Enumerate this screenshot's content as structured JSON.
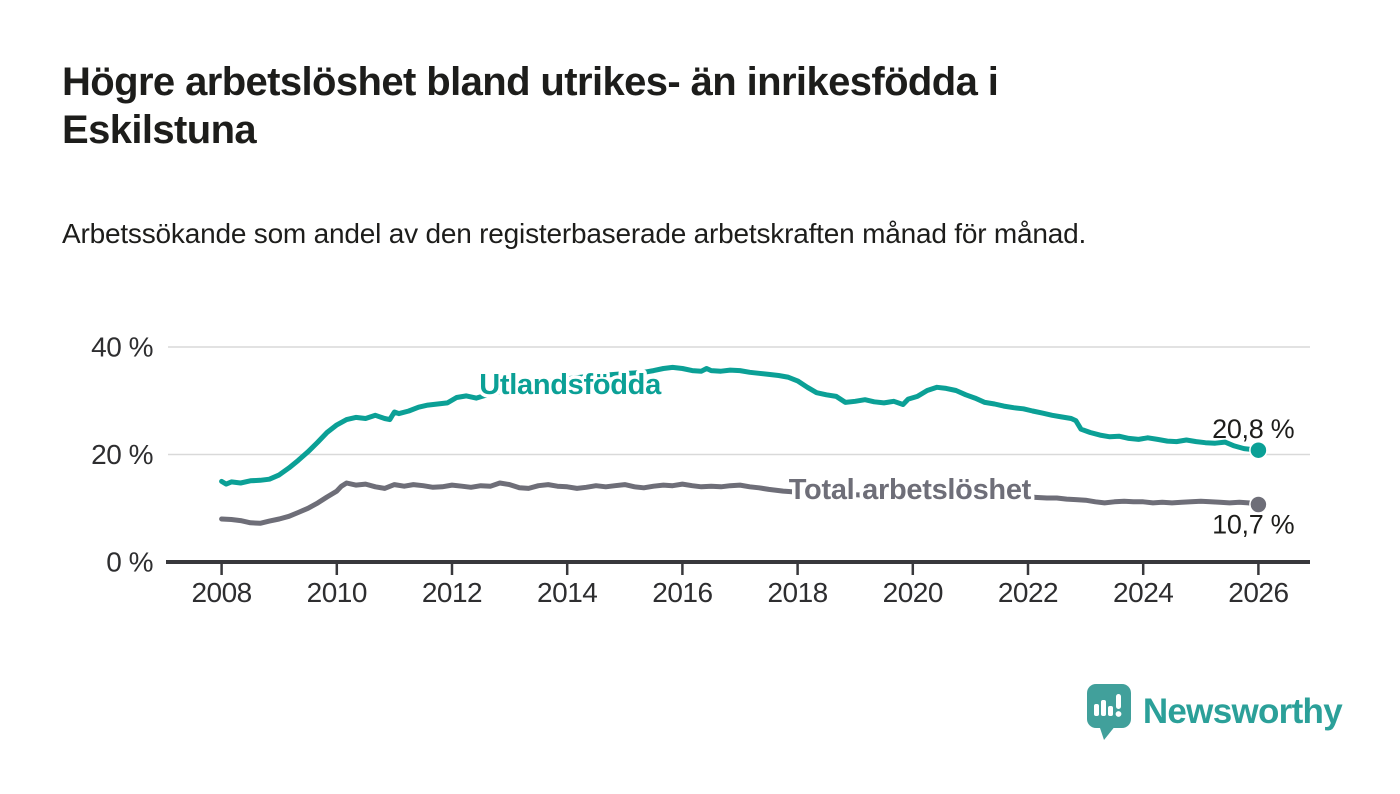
{
  "title": "Högre arbetslöshet bland utrikes- än inrikesfödda i Eskilstuna",
  "subtitle": "Arbetssökande som andel av den registerbaserade arbetskraften månad för månad.",
  "branding": {
    "name": "Newsworthy",
    "logo_icon": "speech-bubble-bar-chart-icon",
    "icon_color": "#41a09b",
    "wordmark_color": "#2ba099"
  },
  "chart_data": {
    "type": "line",
    "title": "Högre arbetslöshet bland utrikes- än inrikesfödda i Eskilstuna",
    "subtitle": "Arbetssökande som andel av den registerbaserade arbetskraften månad för månad.",
    "grid": true,
    "legend_position": "inline-labels",
    "x_axis": {
      "range": [
        2007.0,
        2026.9
      ],
      "ticks": [
        2008,
        2010,
        2012,
        2014,
        2016,
        2018,
        2020,
        2022,
        2024,
        2026
      ],
      "tick_labels": [
        "2008",
        "2010",
        "2012",
        "2014",
        "2016",
        "2018",
        "2020",
        "2022",
        "2024",
        "2026"
      ]
    },
    "y_axis": {
      "range": [
        0,
        42
      ],
      "ticks": [
        0,
        20,
        40
      ],
      "tick_labels": [
        "0 %",
        "20 %",
        "40 %"
      ],
      "unit": "%"
    },
    "colors": {
      "grid": "#d9d9d9",
      "axis": "#38383c",
      "tick_text": "#2e2e30",
      "value_text": "#1d1d1b"
    },
    "series": [
      {
        "name": "Total arbetslöshet",
        "color": "#6e6e78",
        "end_value": 10.7,
        "end_label": "10,7 %",
        "end_label_side": "below",
        "label_anchor": {
          "year": 2019.95,
          "value": 11.7
        },
        "points": [
          [
            2008.0,
            8.0
          ],
          [
            2008.17,
            7.9
          ],
          [
            2008.33,
            7.7
          ],
          [
            2008.5,
            7.3
          ],
          [
            2008.67,
            7.2
          ],
          [
            2008.83,
            7.6
          ],
          [
            2009.0,
            8.0
          ],
          [
            2009.17,
            8.5
          ],
          [
            2009.33,
            9.2
          ],
          [
            2009.5,
            10.0
          ],
          [
            2009.67,
            11.0
          ],
          [
            2009.83,
            12.1
          ],
          [
            2010.0,
            13.2
          ],
          [
            2010.08,
            14.1
          ],
          [
            2010.17,
            14.7
          ],
          [
            2010.33,
            14.3
          ],
          [
            2010.5,
            14.5
          ],
          [
            2010.67,
            14.0
          ],
          [
            2010.83,
            13.7
          ],
          [
            2011.0,
            14.4
          ],
          [
            2011.17,
            14.1
          ],
          [
            2011.33,
            14.4
          ],
          [
            2011.5,
            14.2
          ],
          [
            2011.67,
            13.9
          ],
          [
            2011.83,
            14.0
          ],
          [
            2012.0,
            14.3
          ],
          [
            2012.17,
            14.1
          ],
          [
            2012.33,
            13.9
          ],
          [
            2012.5,
            14.2
          ],
          [
            2012.67,
            14.1
          ],
          [
            2012.83,
            14.7
          ],
          [
            2013.0,
            14.4
          ],
          [
            2013.17,
            13.8
          ],
          [
            2013.33,
            13.7
          ],
          [
            2013.5,
            14.2
          ],
          [
            2013.67,
            14.4
          ],
          [
            2013.83,
            14.1
          ],
          [
            2014.0,
            14.0
          ],
          [
            2014.17,
            13.7
          ],
          [
            2014.33,
            13.9
          ],
          [
            2014.5,
            14.2
          ],
          [
            2014.67,
            14.0
          ],
          [
            2014.83,
            14.2
          ],
          [
            2015.0,
            14.4
          ],
          [
            2015.17,
            14.0
          ],
          [
            2015.33,
            13.8
          ],
          [
            2015.5,
            14.1
          ],
          [
            2015.67,
            14.3
          ],
          [
            2015.83,
            14.2
          ],
          [
            2016.0,
            14.5
          ],
          [
            2016.17,
            14.2
          ],
          [
            2016.33,
            14.0
          ],
          [
            2016.5,
            14.1
          ],
          [
            2016.67,
            14.0
          ],
          [
            2016.83,
            14.2
          ],
          [
            2017.0,
            14.3
          ],
          [
            2017.17,
            14.0
          ],
          [
            2017.33,
            13.8
          ],
          [
            2017.5,
            13.5
          ],
          [
            2017.75,
            13.2
          ],
          [
            2018.0,
            13.0
          ],
          [
            2018.5,
            12.7
          ],
          [
            2019.0,
            12.5
          ],
          [
            2019.5,
            12.3
          ],
          [
            2020.0,
            12.6
          ],
          [
            2020.5,
            13.1
          ],
          [
            2021.0,
            12.9
          ],
          [
            2021.5,
            12.4
          ],
          [
            2022.0,
            12.1
          ],
          [
            2022.33,
            11.9
          ],
          [
            2022.5,
            11.9
          ],
          [
            2022.67,
            11.7
          ],
          [
            2022.83,
            11.6
          ],
          [
            2023.0,
            11.5
          ],
          [
            2023.17,
            11.2
          ],
          [
            2023.33,
            11.0
          ],
          [
            2023.5,
            11.2
          ],
          [
            2023.67,
            11.3
          ],
          [
            2023.83,
            11.2
          ],
          [
            2024.0,
            11.2
          ],
          [
            2024.17,
            11.0
          ],
          [
            2024.33,
            11.1
          ],
          [
            2024.5,
            11.0
          ],
          [
            2024.67,
            11.1
          ],
          [
            2024.83,
            11.2
          ],
          [
            2025.0,
            11.3
          ],
          [
            2025.17,
            11.2
          ],
          [
            2025.33,
            11.1
          ],
          [
            2025.5,
            11.0
          ],
          [
            2025.67,
            11.1
          ],
          [
            2025.83,
            11.0
          ],
          [
            2026.0,
            10.7
          ]
        ]
      },
      {
        "name": "Utlandsfödda",
        "color": "#0ba096",
        "end_value": 20.8,
        "end_label": "20,8 %",
        "end_label_side": "above",
        "label_anchor": {
          "year": 2014.05,
          "value": 31.3
        },
        "points": [
          [
            2008.0,
            15.0
          ],
          [
            2008.08,
            14.5
          ],
          [
            2008.17,
            14.9
          ],
          [
            2008.33,
            14.7
          ],
          [
            2008.5,
            15.1
          ],
          [
            2008.67,
            15.2
          ],
          [
            2008.83,
            15.4
          ],
          [
            2009.0,
            16.2
          ],
          [
            2009.17,
            17.5
          ],
          [
            2009.33,
            18.9
          ],
          [
            2009.5,
            20.5
          ],
          [
            2009.67,
            22.3
          ],
          [
            2009.83,
            24.1
          ],
          [
            2010.0,
            25.5
          ],
          [
            2010.17,
            26.5
          ],
          [
            2010.33,
            26.9
          ],
          [
            2010.5,
            26.7
          ],
          [
            2010.67,
            27.3
          ],
          [
            2010.83,
            26.7
          ],
          [
            2010.92,
            26.5
          ],
          [
            2011.0,
            27.9
          ],
          [
            2011.08,
            27.6
          ],
          [
            2011.25,
            28.1
          ],
          [
            2011.42,
            28.8
          ],
          [
            2011.58,
            29.2
          ],
          [
            2011.75,
            29.4
          ],
          [
            2011.92,
            29.6
          ],
          [
            2012.08,
            30.6
          ],
          [
            2012.25,
            30.9
          ],
          [
            2012.42,
            30.5
          ],
          [
            2012.58,
            31.0
          ],
          [
            2012.83,
            31.7
          ],
          [
            2013.08,
            32.4
          ],
          [
            2013.33,
            33.0
          ],
          [
            2013.58,
            33.5
          ],
          [
            2013.83,
            33.9
          ],
          [
            2014.08,
            34.2
          ],
          [
            2014.33,
            34.5
          ],
          [
            2014.58,
            34.7
          ],
          [
            2014.83,
            34.9
          ],
          [
            2015.08,
            35.1
          ],
          [
            2015.33,
            35.3
          ],
          [
            2015.5,
            35.6
          ],
          [
            2015.67,
            36.0
          ],
          [
            2015.83,
            36.2
          ],
          [
            2016.0,
            36.0
          ],
          [
            2016.17,
            35.6
          ],
          [
            2016.33,
            35.5
          ],
          [
            2016.42,
            36.0
          ],
          [
            2016.5,
            35.6
          ],
          [
            2016.67,
            35.5
          ],
          [
            2016.83,
            35.7
          ],
          [
            2017.0,
            35.6
          ],
          [
            2017.17,
            35.3
          ],
          [
            2017.33,
            35.1
          ],
          [
            2017.5,
            34.9
          ],
          [
            2017.67,
            34.7
          ],
          [
            2017.83,
            34.4
          ],
          [
            2018.0,
            33.7
          ],
          [
            2018.17,
            32.5
          ],
          [
            2018.33,
            31.5
          ],
          [
            2018.5,
            31.1
          ],
          [
            2018.67,
            30.8
          ],
          [
            2018.83,
            29.7
          ],
          [
            2019.0,
            29.9
          ],
          [
            2019.17,
            30.2
          ],
          [
            2019.33,
            29.8
          ],
          [
            2019.5,
            29.6
          ],
          [
            2019.67,
            29.9
          ],
          [
            2019.83,
            29.3
          ],
          [
            2019.92,
            30.3
          ],
          [
            2020.08,
            30.8
          ],
          [
            2020.25,
            31.9
          ],
          [
            2020.42,
            32.5
          ],
          [
            2020.58,
            32.3
          ],
          [
            2020.75,
            31.9
          ],
          [
            2020.92,
            31.1
          ],
          [
            2021.08,
            30.5
          ],
          [
            2021.25,
            29.7
          ],
          [
            2021.42,
            29.4
          ],
          [
            2021.58,
            29.0
          ],
          [
            2021.75,
            28.7
          ],
          [
            2021.92,
            28.5
          ],
          [
            2022.08,
            28.1
          ],
          [
            2022.25,
            27.7
          ],
          [
            2022.42,
            27.3
          ],
          [
            2022.58,
            27.0
          ],
          [
            2022.75,
            26.7
          ],
          [
            2022.83,
            26.3
          ],
          [
            2022.92,
            24.7
          ],
          [
            2023.08,
            24.1
          ],
          [
            2023.25,
            23.6
          ],
          [
            2023.42,
            23.3
          ],
          [
            2023.58,
            23.4
          ],
          [
            2023.75,
            23.0
          ],
          [
            2023.92,
            22.8
          ],
          [
            2024.08,
            23.1
          ],
          [
            2024.25,
            22.8
          ],
          [
            2024.42,
            22.5
          ],
          [
            2024.58,
            22.4
          ],
          [
            2024.75,
            22.7
          ],
          [
            2024.92,
            22.4
          ],
          [
            2025.08,
            22.2
          ],
          [
            2025.25,
            22.1
          ],
          [
            2025.42,
            22.3
          ],
          [
            2025.58,
            21.6
          ],
          [
            2025.75,
            21.1
          ],
          [
            2025.92,
            20.9
          ],
          [
            2026.0,
            20.8
          ]
        ]
      }
    ]
  }
}
